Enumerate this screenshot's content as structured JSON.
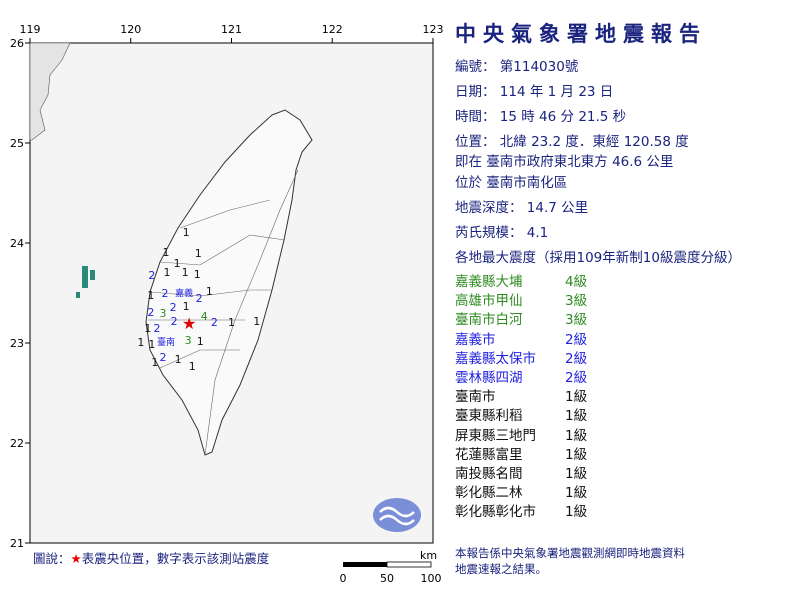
{
  "title": "中央氣象署地震報告",
  "report": {
    "number": "編號： 第114030號",
    "date": "日期： 114 年 1 月 23 日",
    "time": "時間： 15 時 46 分 21.5 秒",
    "location": "位置： 北緯 23.2 度．東經 120.58 度",
    "relative": "即在 臺南市政府東北東方 46.6 公里",
    "district": "位於 臺南市南化區",
    "depth": "地震深度： 14.7 公里",
    "magnitude": "芮氏規模： 4.1",
    "intensity_header": "各地最大震度（採用109年新制10級震度分級）"
  },
  "intensities": [
    {
      "place": "嘉義縣大埔",
      "level": "4級",
      "color": "#2e8b22"
    },
    {
      "place": "高雄市甲仙",
      "level": "3級",
      "color": "#2e8b22"
    },
    {
      "place": "臺南市白河",
      "level": "3級",
      "color": "#2e8b22"
    },
    {
      "place": "嘉義市",
      "level": "2級",
      "color": "#2222dd"
    },
    {
      "place": "嘉義縣太保市",
      "level": "2級",
      "color": "#2222dd"
    },
    {
      "place": "雲林縣四湖",
      "level": "2級",
      "color": "#2222dd"
    },
    {
      "place": "臺南市",
      "level": "1級",
      "color": "#111111"
    },
    {
      "place": "臺東縣利稻",
      "level": "1級",
      "color": "#111111"
    },
    {
      "place": "屏東縣三地門",
      "level": "1級",
      "color": "#111111"
    },
    {
      "place": "花蓮縣富里",
      "level": "1級",
      "color": "#111111"
    },
    {
      "place": "南投縣名間",
      "level": "1級",
      "color": "#111111"
    },
    {
      "place": "彰化縣二林",
      "level": "1級",
      "color": "#111111"
    },
    {
      "place": "彰化縣彰化市",
      "level": "1級",
      "color": "#111111"
    }
  ],
  "note": [
    "本報告係中央氣象署地震觀測網即時地震資料",
    "地震速報之結果。"
  ],
  "legend": {
    "prefix": "圖說：",
    "star": "★",
    "text": "表震央位置，數字表示該測站震度"
  },
  "scale": {
    "unit": "km",
    "ticks": [
      "0",
      "50",
      "100"
    ]
  },
  "map": {
    "lon_ticks": [
      "119",
      "120",
      "121",
      "122",
      "123"
    ],
    "lat_ticks": [
      "26",
      "25",
      "24",
      "23",
      "22",
      "21"
    ],
    "epicenter": {
      "lon": 120.58,
      "lat": 23.2
    },
    "city_labels": [
      {
        "name": "嘉義",
        "lon": 120.53,
        "lat": 23.51
      },
      {
        "name": "臺南",
        "lon": 120.35,
        "lat": 23.02
      }
    ],
    "stations": [
      {
        "v": "1",
        "lon": 120.35,
        "lat": 23.91
      },
      {
        "v": "1",
        "lon": 120.67,
        "lat": 23.9
      },
      {
        "v": "1",
        "lon": 120.46,
        "lat": 23.8
      },
      {
        "v": "1",
        "lon": 120.55,
        "lat": 24.11
      },
      {
        "v": "2",
        "lon": 120.21,
        "lat": 23.68
      },
      {
        "v": "1",
        "lon": 120.36,
        "lat": 23.71
      },
      {
        "v": "1",
        "lon": 120.54,
        "lat": 23.71
      },
      {
        "v": "1",
        "lon": 120.66,
        "lat": 23.62
      },
      {
        "v": "1",
        "lon": 120.78,
        "lat": 23.52
      },
      {
        "v": "1",
        "lon": 120.2,
        "lat": 23.55
      },
      {
        "v": "2",
        "lon": 120.27,
        "lat": 23.5
      },
      {
        "v": "2",
        "lon": 120.42,
        "lat": 23.51
      },
      {
        "v": "2",
        "lon": 120.57,
        "lat": 23.45
      },
      {
        "v": "2",
        "lon": 120.2,
        "lat": 23.38
      },
      {
        "v": "3",
        "lon": 120.39,
        "lat": 23.37
      },
      {
        "v": "1",
        "lon": 120.48,
        "lat": 23.3
      },
      {
        "v": "4",
        "lon": 120.62,
        "lat": 23.27
      },
      {
        "v": "2",
        "lon": 120.5,
        "lat": 23.22
      },
      {
        "v": "2",
        "lon": 120.76,
        "lat": 23.21
      },
      {
        "v": "3",
        "lon": 120.57,
        "lat": 23.1
      },
      {
        "v": "1",
        "lon": 120.17,
        "lat": 23.22
      },
      {
        "v": "2",
        "lon": 120.26,
        "lat": 23.15
      },
      {
        "v": "1",
        "lon": 120.21,
        "lat": 23.06
      },
      {
        "v": "2",
        "lon": 120.32,
        "lat": 23.06
      },
      {
        "v": "1",
        "lon": 120.17,
        "lat": 23.01
      },
      {
        "v": "1",
        "lon": 120.62,
        "lat": 23.02
      },
      {
        "v": "1",
        "lon": 120.24,
        "lat": 22.88
      },
      {
        "v": "1",
        "lon": 120.47,
        "lat": 22.91
      },
      {
        "v": "1",
        "lon": 120.61,
        "lat": 22.77
      },
      {
        "v": "1",
        "lon": 121.0,
        "lat": 23.21
      },
      {
        "v": "1",
        "lon": 121.25,
        "lat": 23.22
      }
    ]
  },
  "colors": {
    "accent": "#1a237e",
    "epicenter": "#e00000",
    "level4": "#2e8b22",
    "level2": "#2222dd"
  }
}
